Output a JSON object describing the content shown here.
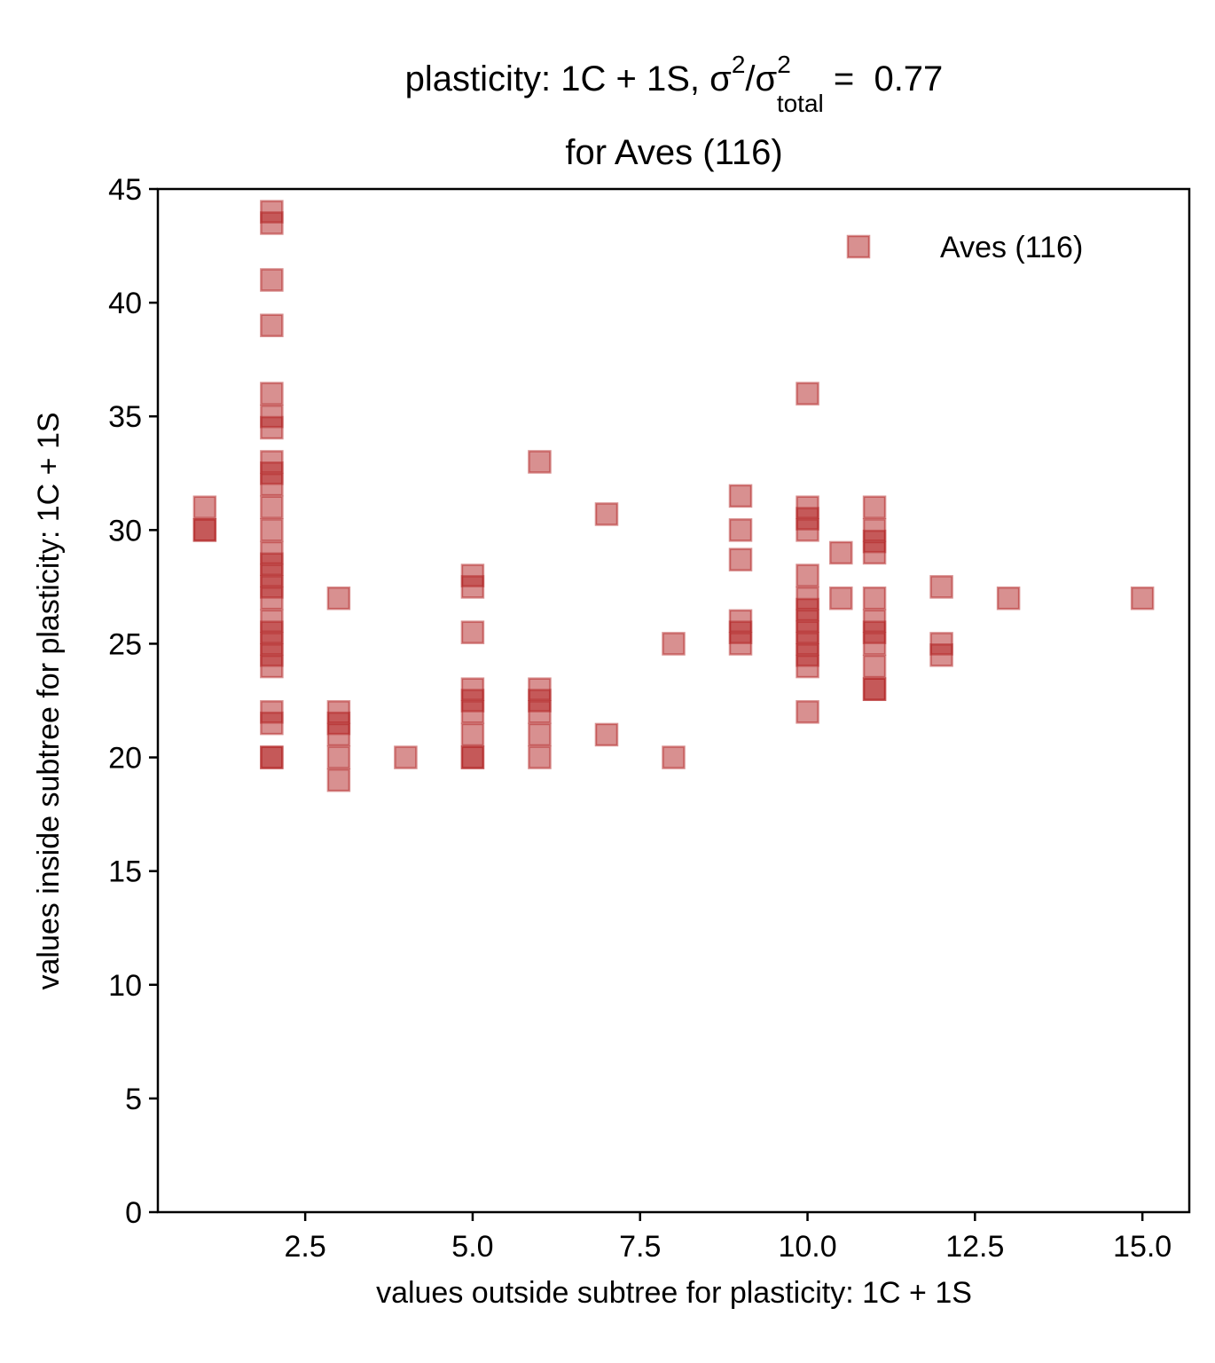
{
  "chart_data": {
    "type": "scatter",
    "title_parts": [
      "plasticity: 1C + 1S, σ",
      "2",
      "/σ",
      "2",
      "total",
      " =  0.77"
    ],
    "subtitle": "for Aves (116)",
    "xlabel": "values outside subtree for plasticity: 1C + 1S",
    "ylabel": "values inside subtree for plasticity: 1C + 1S",
    "xlim": [
      0.3,
      15.7
    ],
    "ylim": [
      0,
      45
    ],
    "xticks": [
      2.5,
      {
        "value": 5,
        "label": "5.0"
      },
      7.5,
      {
        "value": 10,
        "label": "10.0"
      },
      12.5,
      {
        "value": 15,
        "label": "15.0"
      }
    ],
    "yticks": [
      0,
      5,
      10,
      15,
      20,
      25,
      30,
      35,
      40,
      45
    ],
    "legend": "upper right",
    "series": [
      {
        "name": "Aves (116)",
        "color": "#b22222",
        "x": [
          1,
          1,
          1,
          2,
          2,
          2,
          2,
          2,
          2,
          2,
          2,
          2,
          2,
          2,
          2,
          2,
          2,
          2,
          2,
          2,
          2,
          2,
          2,
          2,
          2,
          2,
          2,
          2,
          2,
          3,
          3,
          3,
          3,
          3,
          3,
          4,
          5,
          5,
          5,
          5,
          5,
          5,
          5,
          5,
          5,
          6,
          6,
          6,
          6,
          6,
          6,
          7,
          7,
          8,
          8,
          9,
          9,
          9,
          9,
          9,
          9,
          10,
          10,
          10,
          10,
          10,
          10,
          10,
          10,
          10,
          10,
          10,
          10,
          10,
          10.5,
          10.5,
          11,
          11,
          11,
          11,
          11,
          11,
          11,
          11,
          11,
          11,
          11,
          12,
          12,
          12,
          13,
          15
        ],
        "values": [
          30,
          30,
          31,
          44,
          43.5,
          41,
          39,
          36,
          35,
          34.5,
          33,
          32.5,
          32,
          31,
          30,
          29,
          28.5,
          28,
          27.5,
          27,
          26,
          25.5,
          25,
          24.5,
          24,
          22,
          21.5,
          20,
          20,
          27,
          22,
          21.5,
          21,
          20,
          19,
          20,
          28,
          27.5,
          25.5,
          23,
          22.5,
          22,
          21,
          20,
          20,
          33,
          23,
          22.5,
          22,
          21,
          20,
          30.7,
          21,
          25,
          20,
          31.5,
          30,
          28.7,
          26,
          25.5,
          25,
          36,
          31,
          30.5,
          30,
          28,
          27,
          26.5,
          26,
          25.5,
          25,
          24.5,
          24,
          22,
          29,
          27,
          31,
          30,
          29.5,
          29,
          27,
          26,
          25.5,
          25,
          24,
          23,
          23,
          27.5,
          25,
          24.5,
          27,
          27
        ]
      }
    ]
  }
}
